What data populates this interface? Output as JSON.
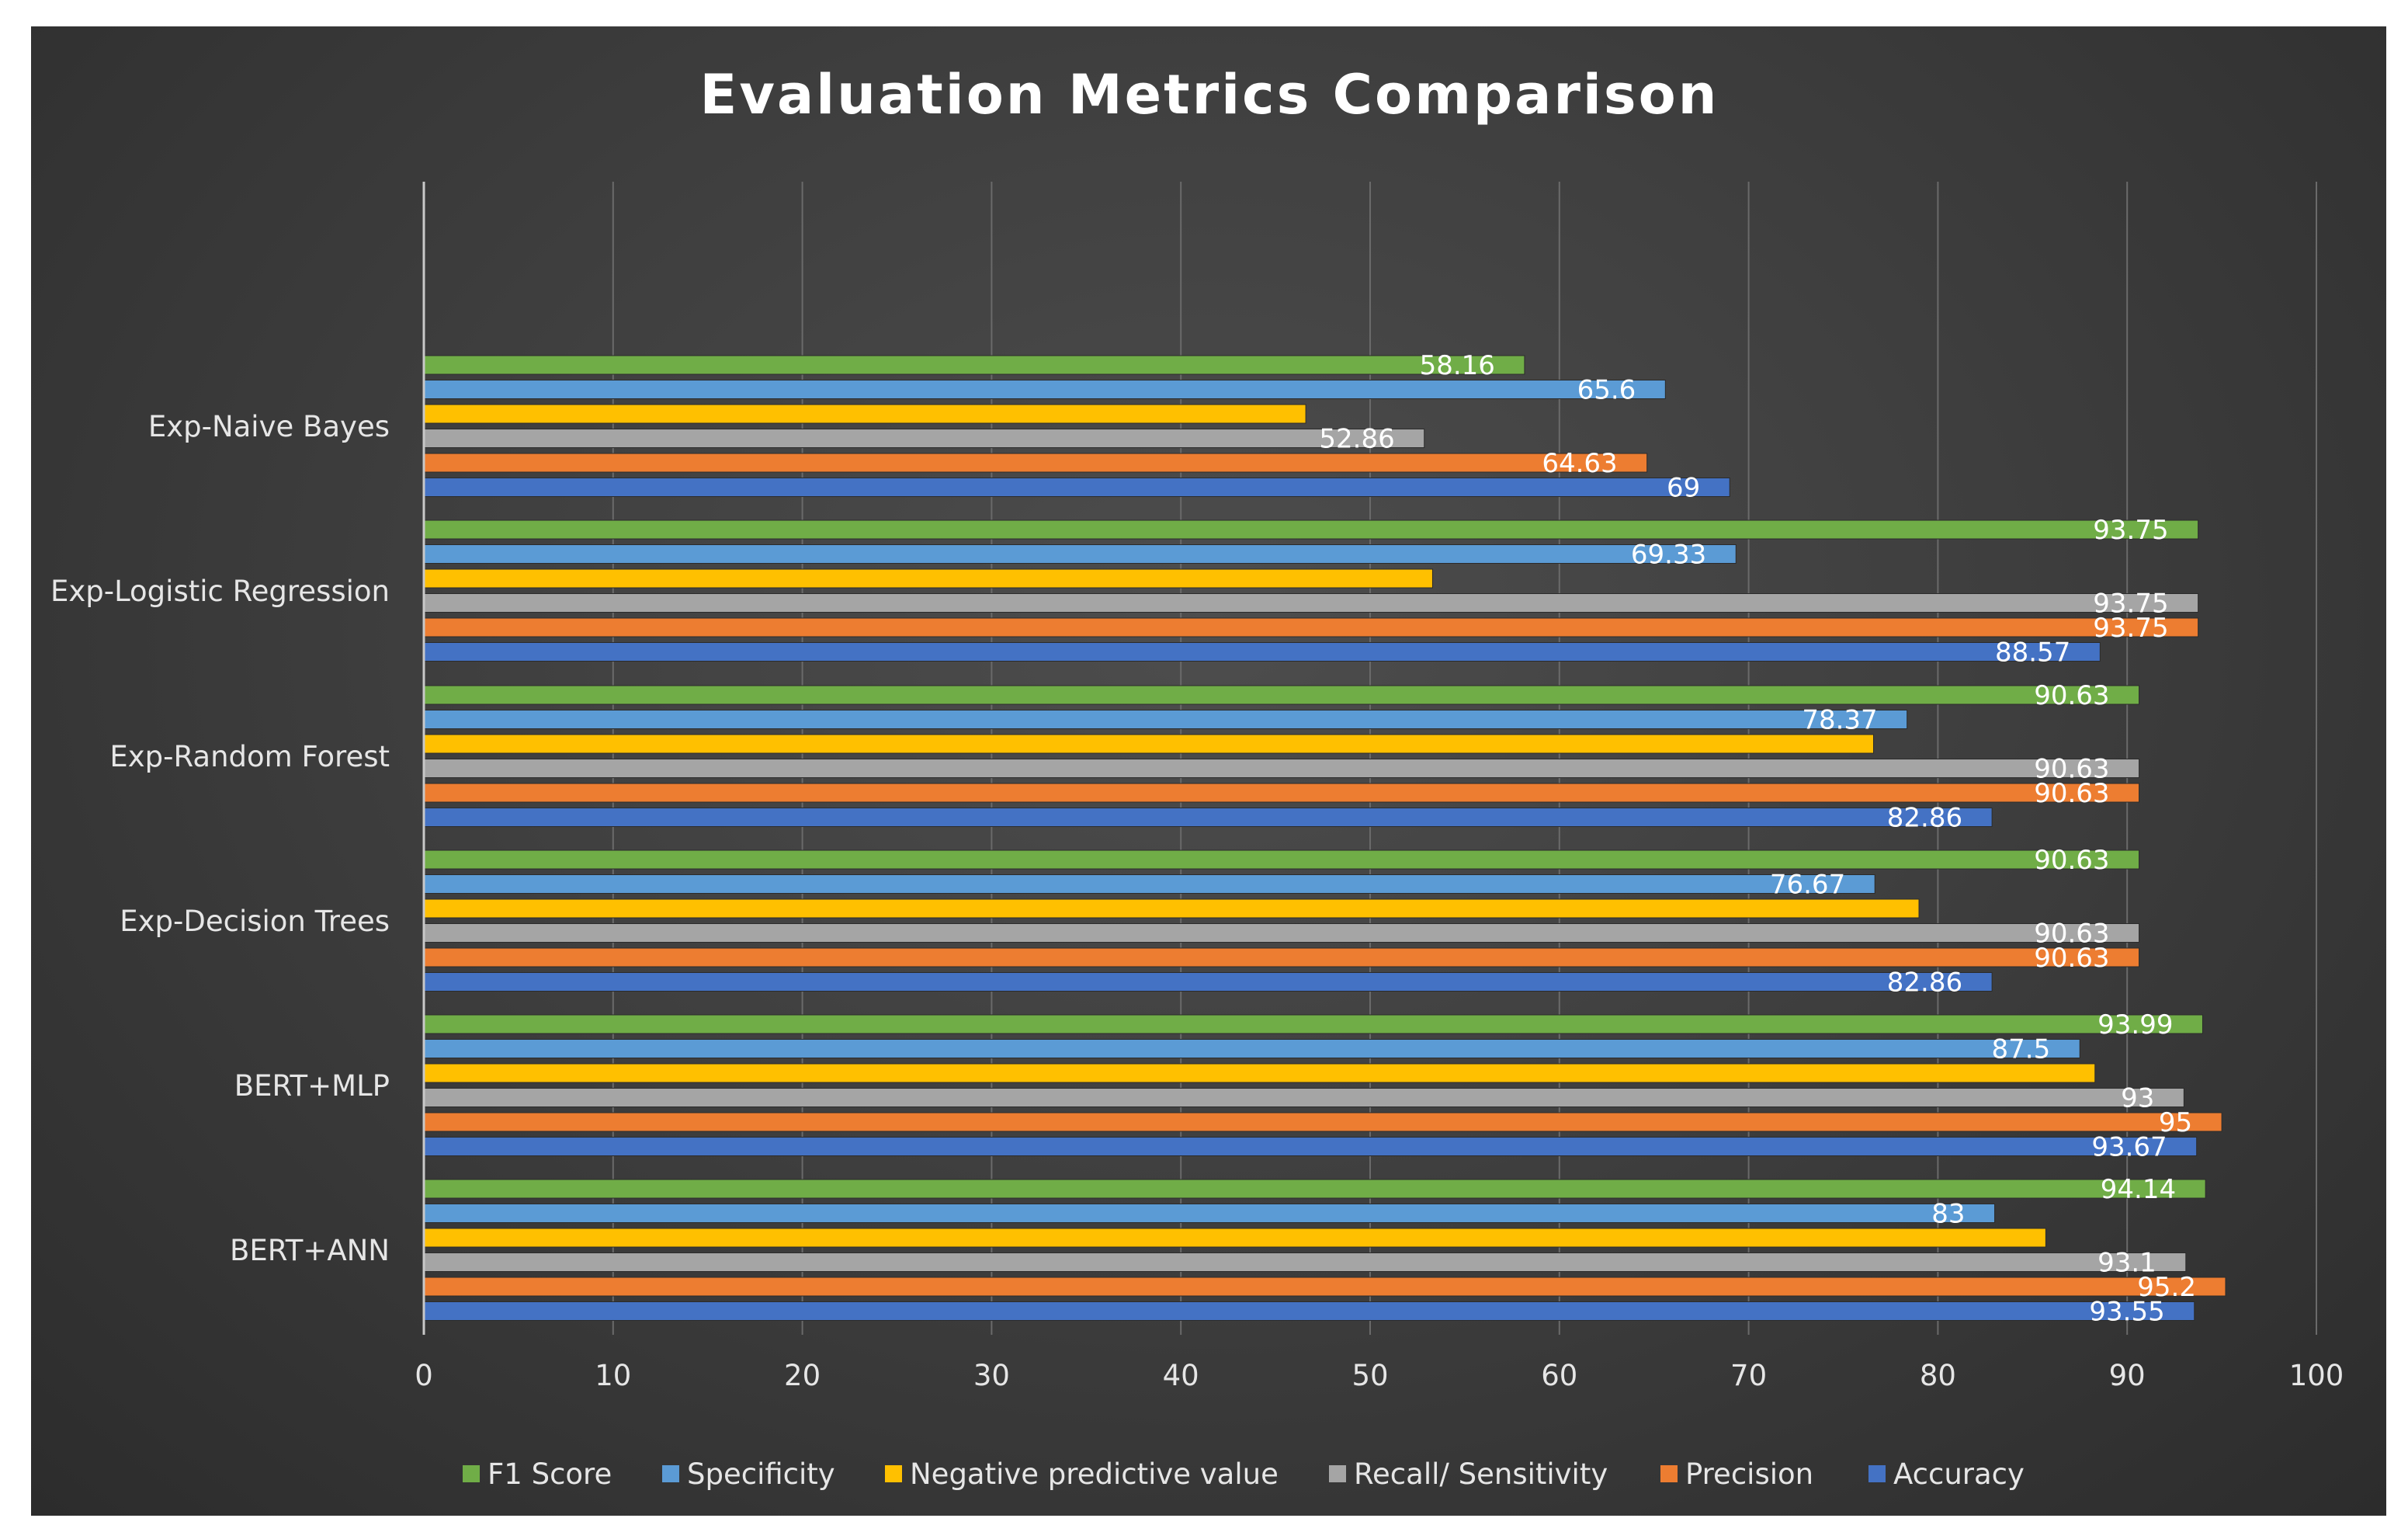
{
  "chart_data": {
    "type": "bar",
    "orientation": "horizontal",
    "title": "Evaluation Metrics Comparison",
    "xlabel": "",
    "ylabel": "",
    "xlim": [
      0,
      100
    ],
    "xticks": [
      0,
      10,
      20,
      30,
      40,
      50,
      60,
      70,
      80,
      90,
      100
    ],
    "grid": true,
    "legend_position": "bottom",
    "categories": [
      "Exp-Naive Bayes",
      "Exp-Logistic Regression",
      "Exp-Random Forest",
      "Exp-Decision Trees",
      "BERT+MLP",
      "BERT+ANN"
    ],
    "series": [
      {
        "name": "F1 Score",
        "color": "#70AD47",
        "values": [
          58.16,
          93.75,
          90.63,
          90.63,
          93.99,
          94.14
        ],
        "labels": [
          "58.16",
          "93.75",
          "90.63",
          "90.63",
          "93.99",
          "94.14"
        ]
      },
      {
        "name": "Specificity",
        "color": "#5B9BD5",
        "values": [
          65.6,
          69.33,
          78.37,
          76.67,
          87.5,
          83
        ],
        "labels": [
          "65.6",
          "69.33",
          "78.37",
          "76.67",
          "87.5",
          "83"
        ]
      },
      {
        "name": "Negative predictive value",
        "color": "#FFC000",
        "values": [
          46.6,
          53.3,
          76.6,
          79.0,
          88.3,
          85.7
        ],
        "labels": [
          "",
          "",
          "",
          "",
          "",
          ""
        ]
      },
      {
        "name": "Recall/ Sensitivity",
        "color": "#A5A5A5",
        "values": [
          52.86,
          93.75,
          90.63,
          90.63,
          93,
          93.1
        ],
        "labels": [
          "52.86",
          "93.75",
          "90.63",
          "90.63",
          "93",
          "93.1"
        ]
      },
      {
        "name": "Precision",
        "color": "#ED7D31",
        "values": [
          64.63,
          93.75,
          90.63,
          90.63,
          95,
          95.2
        ],
        "labels": [
          "64.63",
          "93.75",
          "90.63",
          "90.63",
          "95",
          "95.2"
        ]
      },
      {
        "name": "Accuracy",
        "color": "#4472C4",
        "values": [
          69,
          88.57,
          82.86,
          82.86,
          93.67,
          93.55
        ],
        "labels": [
          "69",
          "88.57",
          "82.86",
          "82.86",
          "93.67",
          "93.55"
        ]
      }
    ]
  }
}
